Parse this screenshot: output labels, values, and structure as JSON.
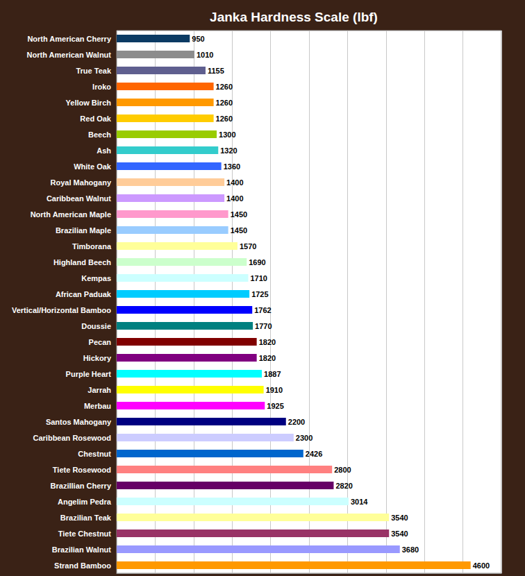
{
  "chart_data": {
    "type": "bar",
    "title": "Janka Hardness Scale (lbf)",
    "orientation": "horizontal",
    "categories": [
      "North American Cherry",
      "North American Walnut",
      "True Teak",
      "Iroko",
      "Yellow Birch",
      "Red Oak",
      "Beech",
      "Ash",
      "White Oak",
      "Royal Mahogany",
      "Caribbean Walnut",
      "North American Maple",
      "Brazilian Maple",
      "Timborana",
      "Highland Beech",
      "Kempas",
      "African Paduak",
      "Vertical/Horizontal Bamboo",
      "Doussie",
      "Pecan",
      "Hickory",
      "Purple Heart",
      "Jarrah",
      "Merbau",
      "Santos Mahogany",
      "Caribbean Rosewood",
      "Chestnut",
      "Tiete Rosewood",
      "Brazillian Cherry",
      "Angelim Pedra",
      "Brazilian Teak",
      "Tiete Chestnut",
      "Brazilian Walnut",
      "Strand Bamboo"
    ],
    "values": [
      950,
      1010,
      1155,
      1260,
      1260,
      1260,
      1300,
      1320,
      1360,
      1400,
      1400,
      1450,
      1450,
      1570,
      1690,
      1710,
      1725,
      1762,
      1770,
      1820,
      1820,
      1887,
      1910,
      1925,
      2200,
      2300,
      2426,
      2800,
      2820,
      3014,
      3540,
      3540,
      3680,
      4600
    ],
    "colors": [
      "#0b3a63",
      "#8c8c8c",
      "#5f5f8f",
      "#ff6600",
      "#ff9900",
      "#ffcc00",
      "#99cc00",
      "#33cccc",
      "#3366ff",
      "#ffcc99",
      "#cc99ff",
      "#ff99cc",
      "#99ccff",
      "#ffff99",
      "#ccffcc",
      "#ccffff",
      "#00ccff",
      "#0000ff",
      "#008080",
      "#800000",
      "#800080",
      "#00ffff",
      "#ffff00",
      "#ff00ff",
      "#000080",
      "#ccccff",
      "#0066cc",
      "#ff8080",
      "#660066",
      "#ccffff",
      "#ffff99",
      "#993366",
      "#9999ff",
      "#ff9900"
    ],
    "xlim": [
      0,
      5000
    ],
    "xticks": [
      0,
      500,
      1000,
      1500,
      2000,
      2500,
      3000,
      3500,
      4000,
      4500,
      5000
    ],
    "grid": true,
    "data_labels": true,
    "tick_labels": "y"
  }
}
